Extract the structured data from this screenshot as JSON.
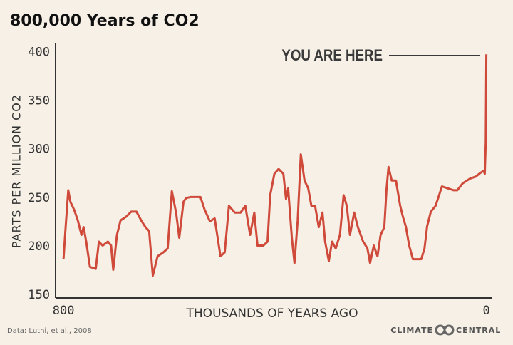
{
  "chart_data": {
    "type": "line",
    "title": "800,000 Years of CO2",
    "x_label": "THOUSANDS OF YEARS AGO",
    "y_label": "PARTS PER MILLION  CO2",
    "annotation": "YOU ARE HERE",
    "source": "Data: Luthi, et al., 2008",
    "brand": [
      "CLIMATE",
      "CENTRAL"
    ],
    "xlim": [
      815,
      -10
    ],
    "xticks": [
      800,
      0
    ],
    "ylim": [
      147,
      410
    ],
    "yticks": [
      150,
      200,
      250,
      300,
      350,
      400
    ],
    "series": [
      {
        "color": "#cf4a3a",
        "x": [
          800,
          796,
          791,
          787,
          780,
          773,
          766,
          762,
          757,
          750,
          739,
          733,
          726,
          716,
          710,
          706,
          699,
          692,
          681,
          672,
          662,
          652,
          645,
          638,
          631,
          622,
          611,
          603,
          595,
          587,
          581,
          573,
          568,
          560,
          550,
          541,
          533,
          523,
          514,
          503,
          495,
          487,
          476,
          465,
          456,
          447,
          439,
          433,
          422,
          414,
          409,
          401,
          393,
          384,
          379,
          375,
          368,
          363,
          357,
          351,
          344,
          337,
          331,
          324,
          317,
          310,
          305,
          298,
          292,
          285,
          277,
          270,
          264,
          258,
          250,
          243,
          233,
          225,
          220,
          213,
          206,
          200,
          193,
          189,
          185,
          179,
          171,
          163,
          158,
          152,
          146,
          139,
          131,
          123,
          117,
          112,
          105,
          96,
          84,
          73,
          62,
          55,
          45,
          31,
          20,
          11,
          5,
          3,
          1,
          0
        ],
        "values": [
          187,
          220,
          258,
          246,
          238,
          227,
          212,
          220,
          205,
          179,
          177,
          205,
          201,
          205,
          201,
          176,
          212,
          227,
          231,
          236,
          236,
          226,
          220,
          216,
          170,
          190,
          194,
          198,
          257,
          235,
          209,
          246,
          250,
          251,
          251,
          251,
          238,
          226,
          229,
          190,
          194,
          242,
          235,
          235,
          242,
          212,
          235,
          201,
          201,
          205,
          253,
          275,
          280,
          275,
          249,
          260,
          209,
          183,
          227,
          295,
          268,
          260,
          242,
          242,
          220,
          235,
          205,
          185,
          205,
          198,
          212,
          253,
          242,
          212,
          235,
          220,
          205,
          198,
          183,
          201,
          190,
          212,
          220,
          258,
          282,
          268,
          268,
          242,
          231,
          220,
          201,
          187,
          187,
          187,
          198,
          221,
          236,
          242,
          262,
          260,
          258,
          258,
          265,
          270,
          272,
          276,
          278,
          275,
          308,
          398
        ]
      }
    ]
  }
}
